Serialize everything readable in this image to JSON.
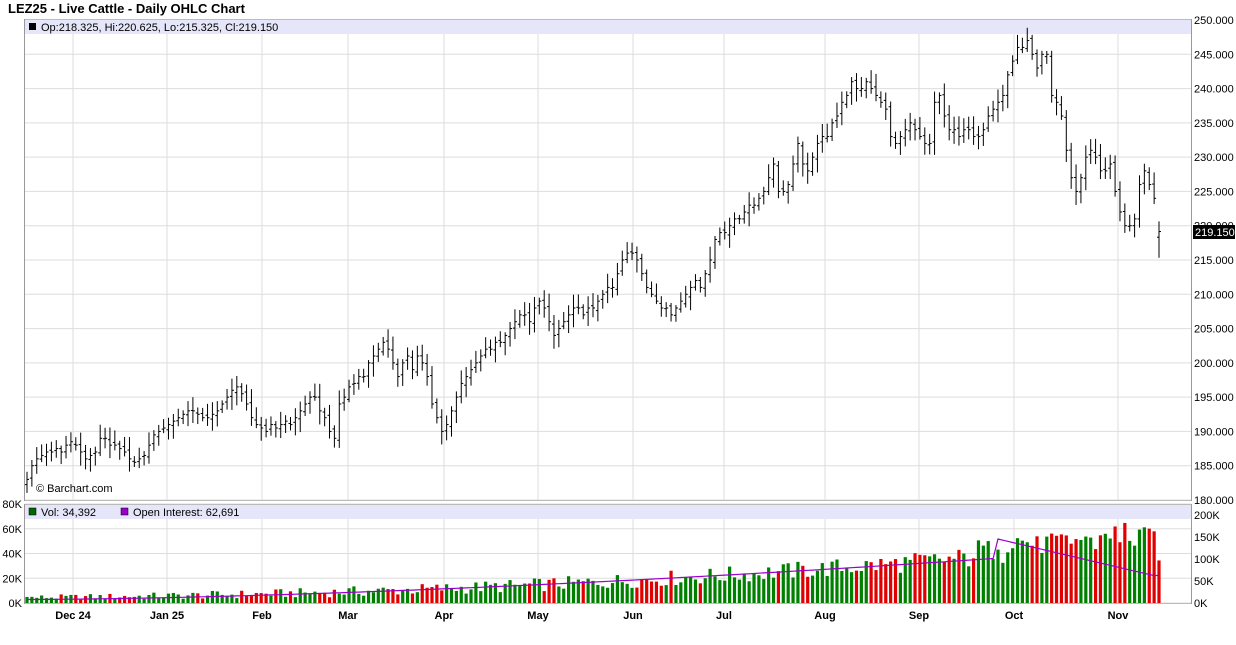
{
  "title": "LEZ25 - Live Cattle - Daily OHLC Chart",
  "ohlc_label": "Op:218.325, Hi:220.625, Lo:215.325, Cl:219.150",
  "vol_label": "Vol: 34,392",
  "oi_label": "Open Interest: 62,691",
  "watermark": "© Barchart.com",
  "last_price_label": "219.150",
  "colors": {
    "info_band": "#e6e6fa",
    "grid": "#dddddd",
    "volume_up": "#008000",
    "volume_down": "#e00000",
    "open_interest": "#9900cc",
    "highlight_bar": "#0000cc"
  },
  "chart_data": [
    {
      "type": "ohlc",
      "y_axis_ticks": [
        "180.000",
        "185.000",
        "190.000",
        "195.000",
        "200.000",
        "205.000",
        "210.000",
        "215.000",
        "220.000",
        "225.000",
        "230.000",
        "235.000",
        "240.000",
        "245.000",
        "250.000"
      ],
      "ylim": [
        180,
        250
      ],
      "x_tick_labels": [
        "Dec 24",
        "Jan 25",
        "Feb",
        "Mar",
        "Apr",
        "May",
        "Jun",
        "Jul",
        "Aug",
        "Sep",
        "Oct",
        "Nov"
      ],
      "last_bar": {
        "open": 218.325,
        "high": 220.625,
        "low": 215.325,
        "close": 219.15
      },
      "closes": [
        183,
        185,
        186,
        186.5,
        187,
        187,
        187.5,
        187,
        188,
        188.5,
        188,
        187,
        186,
        186.5,
        187,
        189,
        189,
        188,
        188,
        187.5,
        187,
        186,
        185.5,
        186,
        186.5,
        188,
        189.5,
        190,
        190.5,
        191,
        191.5,
        192,
        192.5,
        193,
        193,
        192.5,
        192,
        192,
        192.5,
        193,
        194,
        195,
        196,
        196.5,
        195.5,
        194,
        192,
        191,
        190.5,
        190,
        191,
        190.5,
        191,
        191.5,
        191,
        192,
        193,
        194,
        195,
        195,
        193,
        192,
        190,
        189,
        194,
        195,
        196.5,
        197,
        198,
        198,
        200,
        201,
        202,
        203,
        202,
        200,
        198,
        200,
        201,
        199,
        201,
        200,
        198,
        194,
        192,
        190,
        191,
        193,
        195,
        197,
        198,
        199,
        200,
        201,
        202,
        202,
        203,
        203,
        204,
        205,
        206,
        207,
        207,
        206,
        208,
        209,
        208,
        206,
        204,
        205,
        206,
        207,
        208,
        208,
        207,
        208,
        208,
        209,
        210,
        211,
        211,
        213,
        215,
        216,
        216,
        215,
        213,
        211,
        210,
        209,
        208,
        208,
        207,
        208,
        209,
        210,
        211,
        212,
        211,
        213,
        215,
        218,
        219,
        219,
        220,
        221,
        221,
        222,
        223,
        223,
        224,
        225,
        227,
        229,
        225,
        225,
        226,
        229,
        232,
        229,
        228,
        230,
        232,
        233,
        233,
        235,
        236,
        238,
        239,
        241,
        240,
        240,
        241,
        240,
        239,
        238,
        237,
        233,
        232,
        233,
        234,
        235,
        234,
        233,
        232,
        232,
        238,
        239,
        236,
        234,
        234,
        233,
        234,
        234,
        233,
        233,
        234,
        236,
        237,
        238,
        239,
        242,
        244,
        246,
        246,
        247,
        245,
        243,
        245,
        245,
        239,
        238,
        236,
        231,
        227,
        225,
        227,
        230,
        231,
        230,
        228,
        228,
        229,
        225,
        222,
        220,
        220,
        221,
        226,
        228,
        226,
        224,
        219.15
      ],
      "volume_axis_ticks_left": [
        "0K",
        "20K",
        "40K",
        "60K",
        "80K"
      ],
      "oi_axis_ticks_right": [
        "0K",
        "50K",
        "100K",
        "150K",
        "200K"
      ],
      "volume_ylim": [
        0,
        80000
      ],
      "oi_ylim": [
        0,
        200000
      ],
      "last_volume": 34392,
      "last_open_interest": 62691
    }
  ]
}
